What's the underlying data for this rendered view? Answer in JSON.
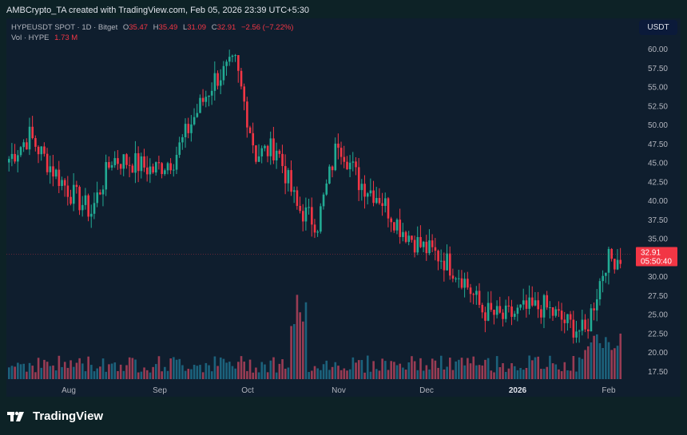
{
  "header": {
    "attribution": "AMBCrypto_TA created with TradingView.com, Feb 05, 2026 23:39 UTC+5:30"
  },
  "legend": {
    "symbol": "HYPEUSDT SPOT · 1D · Bitget",
    "open_label": "O",
    "open": "35.47",
    "high_label": "H",
    "high": "35.49",
    "low_label": "L",
    "low": "31.09",
    "close_label": "C",
    "close": "32.91",
    "change": "−2.56 (−7.22%)",
    "vol_label": "Vol · HYPE",
    "vol_value": "1.73 M"
  },
  "price_axis": {
    "unit": "USDT",
    "ticks": [
      "60.00",
      "57.50",
      "55.00",
      "52.50",
      "50.00",
      "47.50",
      "45.00",
      "42.50",
      "40.00",
      "37.50",
      "35.00",
      "32.50",
      "30.00",
      "27.50",
      "25.00",
      "22.50",
      "20.00",
      "17.50"
    ],
    "last_price": "32.91",
    "countdown": "05:50:40"
  },
  "time_axis": {
    "ticks": [
      "Aug",
      "Sep",
      "Oct",
      "Nov",
      "Dec",
      "2026",
      "Feb"
    ]
  },
  "footer": {
    "brand": "TradingView"
  },
  "colors": {
    "up": "#22ab94",
    "down": "#f23645",
    "vol_up": "#1f6e8a",
    "vol_down": "#b2425a",
    "background": "#0d2226",
    "pane": "#0f1e2e"
  },
  "chart_data": {
    "type": "candlestick",
    "title": "HYPEUSDT SPOT · 1D · Bitget",
    "xlabel": "",
    "ylabel": "USDT",
    "ylim": [
      15.5,
      62
    ],
    "grid": false,
    "x_ticks": [
      "Aug",
      "Sep",
      "Oct",
      "Nov",
      "Dec",
      "2026",
      "Feb"
    ],
    "legend": {
      "open": 35.47,
      "high": 35.49,
      "low": 31.09,
      "close": 32.91,
      "change": -2.56,
      "change_pct": -7.22,
      "volume": "1.73M"
    },
    "approx_closes_weekly": [
      {
        "x": "Jul 08",
        "close": 45.5
      },
      {
        "x": "Jul 15",
        "close": 48.5
      },
      {
        "x": "Jul 22",
        "close": 44.5
      },
      {
        "x": "Jul 29",
        "close": 41.0
      },
      {
        "x": "Aug 05",
        "close": 38.5
      },
      {
        "x": "Aug 12",
        "close": 45.5
      },
      {
        "x": "Aug 19",
        "close": 45.0
      },
      {
        "x": "Aug 26",
        "close": 44.0
      },
      {
        "x": "Sep 02",
        "close": 45.5
      },
      {
        "x": "Sep 09",
        "close": 51.0
      },
      {
        "x": "Sep 16",
        "close": 56.0
      },
      {
        "x": "Sep 23",
        "close": 58.0
      },
      {
        "x": "Sep 30",
        "close": 46.0
      },
      {
        "x": "Oct 07",
        "close": 47.0
      },
      {
        "x": "Oct 14",
        "close": 39.0
      },
      {
        "x": "Oct 21",
        "close": 37.0
      },
      {
        "x": "Oct 28",
        "close": 48.0
      },
      {
        "x": "Nov 04",
        "close": 42.5
      },
      {
        "x": "Nov 11",
        "close": 40.5
      },
      {
        "x": "Nov 18",
        "close": 36.5
      },
      {
        "x": "Nov 25",
        "close": 34.0
      },
      {
        "x": "Dec 02",
        "close": 32.5
      },
      {
        "x": "Dec 09",
        "close": 30.0
      },
      {
        "x": "Dec 16",
        "close": 25.5
      },
      {
        "x": "Dec 23",
        "close": 24.5
      },
      {
        "x": "Dec 30",
        "close": 25.5
      },
      {
        "x": "Jan 06",
        "close": 26.0
      },
      {
        "x": "Jan 13",
        "close": 24.0
      },
      {
        "x": "Jan 20",
        "close": 22.5
      },
      {
        "x": "Jan 27",
        "close": 32.0
      },
      {
        "x": "Feb 03",
        "close": 32.91
      }
    ]
  }
}
